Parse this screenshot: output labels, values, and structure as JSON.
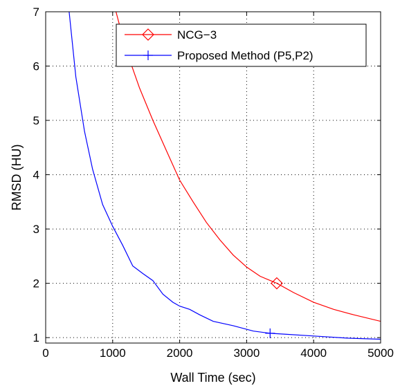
{
  "chart_data": {
    "type": "line",
    "xlabel": "Wall Time (sec)",
    "ylabel": "RMSD (HU)",
    "xlim": [
      0,
      5000
    ],
    "ylim": [
      0.9,
      7
    ],
    "xticks": [
      0,
      1000,
      2000,
      3000,
      4000,
      5000
    ],
    "yticks": [
      1,
      2,
      3,
      4,
      5,
      6,
      7
    ],
    "grid": true,
    "legend_position": "top-right",
    "series": [
      {
        "name": "NCG−3",
        "color": "#ff0000",
        "marker": "diamond",
        "marker_at": [
          3450,
          2.0
        ],
        "x": [
          1050,
          1200,
          1400,
          1600,
          1800,
          2000,
          2200,
          2400,
          2600,
          2800,
          3000,
          3200,
          3450,
          3700,
          4000,
          4300,
          4600,
          5000
        ],
        "y": [
          7.0,
          6.3,
          5.6,
          5.0,
          4.45,
          3.9,
          3.5,
          3.12,
          2.8,
          2.52,
          2.3,
          2.13,
          2.0,
          1.83,
          1.65,
          1.52,
          1.42,
          1.3
        ]
      },
      {
        "name": "Proposed Method (P5,P2)",
        "color": "#0000ff",
        "marker": "plus",
        "marker_at": [
          3350,
          1.08
        ],
        "x": [
          350,
          450,
          580,
          700,
          850,
          1000,
          1150,
          1300,
          1450,
          1600,
          1750,
          1900,
          2000,
          2150,
          2300,
          2500,
          2800,
          3100,
          3350,
          3600,
          4000,
          4500,
          5000
        ],
        "y": [
          7.0,
          5.8,
          4.8,
          4.1,
          3.45,
          3.05,
          2.7,
          2.32,
          2.18,
          2.05,
          1.8,
          1.65,
          1.58,
          1.52,
          1.42,
          1.3,
          1.22,
          1.12,
          1.08,
          1.06,
          1.03,
          0.99,
          0.97
        ]
      }
    ]
  }
}
